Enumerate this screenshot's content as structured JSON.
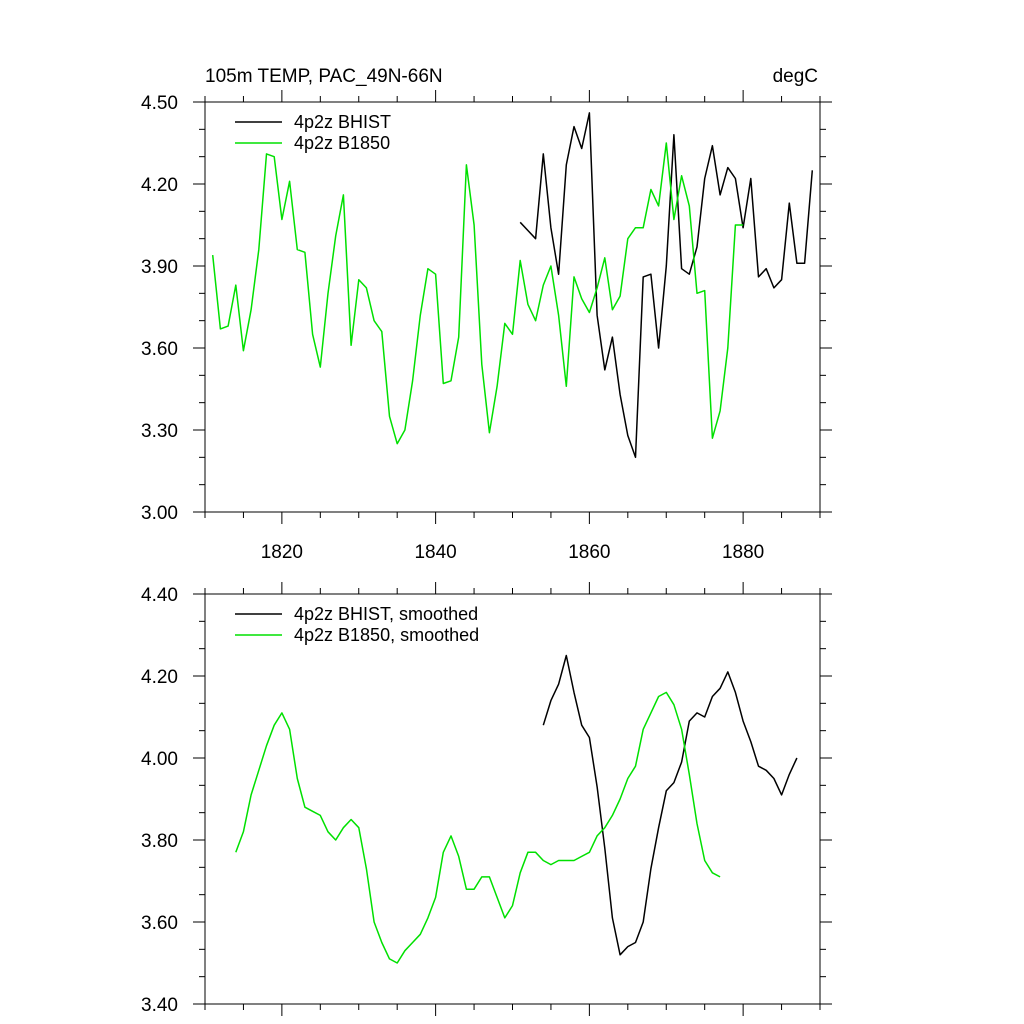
{
  "colors": {
    "bhist": "#000000",
    "b1850": "#00e000",
    "axis": "#000000"
  },
  "chart_data": [
    {
      "type": "line",
      "title": "105m TEMP, PAC_49N-66N",
      "units": "degC",
      "xlabel": "",
      "ylabel": "",
      "xlim": [
        1810,
        1890
      ],
      "ylim": [
        3.0,
        4.5
      ],
      "xticks": [
        1820,
        1840,
        1860,
        1880
      ],
      "xtick_labels": [
        "1820",
        "1840",
        "1860",
        "1880"
      ],
      "yticks": [
        3.0,
        3.3,
        3.6,
        3.9,
        4.2,
        4.5
      ],
      "ytick_labels": [
        "3.00",
        "3.30",
        "3.60",
        "3.90",
        "4.20",
        "4.50"
      ],
      "grid": false,
      "legend_position": "top-left",
      "series": [
        {
          "name": "4p2z BHIST",
          "color": "#000000",
          "x": [
            1851,
            1852,
            1853,
            1854,
            1855,
            1856,
            1857,
            1858,
            1859,
            1860,
            1861,
            1862,
            1863,
            1864,
            1865,
            1866,
            1867,
            1868,
            1869,
            1870,
            1871,
            1872,
            1873,
            1874,
            1875,
            1876,
            1877,
            1878,
            1879,
            1880,
            1881,
            1882,
            1883,
            1884,
            1885,
            1886,
            1887,
            1888,
            1889
          ],
          "values": [
            4.06,
            4.03,
            4.0,
            4.31,
            4.04,
            3.87,
            4.27,
            4.41,
            4.33,
            4.46,
            3.72,
            3.52,
            3.64,
            3.43,
            3.28,
            3.2,
            3.86,
            3.87,
            3.6,
            3.9,
            4.38,
            3.89,
            3.87,
            3.97,
            4.22,
            4.34,
            4.16,
            4.26,
            4.22,
            4.04,
            4.22,
            3.86,
            3.89,
            3.82,
            3.85,
            4.13,
            3.91,
            3.91,
            4.25
          ]
        },
        {
          "name": "4p2z B1850",
          "color": "#00e000",
          "x": [
            1811,
            1812,
            1813,
            1814,
            1815,
            1816,
            1817,
            1818,
            1819,
            1820,
            1821,
            1822,
            1823,
            1824,
            1825,
            1826,
            1827,
            1828,
            1829,
            1830,
            1831,
            1832,
            1833,
            1834,
            1835,
            1836,
            1837,
            1838,
            1839,
            1840,
            1841,
            1842,
            1843,
            1844,
            1845,
            1846,
            1847,
            1848,
            1849,
            1850,
            1851,
            1852,
            1853,
            1854,
            1855,
            1856,
            1857,
            1858,
            1859,
            1860,
            1861,
            1862,
            1863,
            1864,
            1865,
            1866,
            1867,
            1868,
            1869,
            1870,
            1871,
            1872,
            1873,
            1874,
            1875,
            1876,
            1877,
            1878,
            1879,
            1880
          ],
          "values": [
            3.94,
            3.67,
            3.68,
            3.83,
            3.59,
            3.74,
            3.96,
            4.31,
            4.3,
            4.07,
            4.21,
            3.96,
            3.95,
            3.65,
            3.53,
            3.8,
            4.01,
            4.16,
            3.61,
            3.85,
            3.82,
            3.7,
            3.66,
            3.35,
            3.25,
            3.3,
            3.48,
            3.72,
            3.89,
            3.87,
            3.47,
            3.48,
            3.64,
            4.27,
            4.05,
            3.54,
            3.29,
            3.46,
            3.69,
            3.65,
            3.92,
            3.76,
            3.7,
            3.83,
            3.9,
            3.72,
            3.46,
            3.86,
            3.78,
            3.73,
            3.82,
            3.93,
            3.74,
            3.79,
            4.0,
            4.04,
            4.04,
            4.18,
            4.12,
            4.35,
            4.07,
            4.23,
            4.12,
            3.8,
            3.81,
            3.27,
            3.37,
            3.6,
            4.05,
            4.05
          ]
        }
      ]
    },
    {
      "type": "line",
      "title": "",
      "xlabel": "",
      "ylabel": "",
      "xlim": [
        1810,
        1890
      ],
      "ylim": [
        3.4,
        4.4
      ],
      "xticks": [
        1820,
        1840,
        1860,
        1880
      ],
      "yticks": [
        3.4,
        3.6,
        3.8,
        4.0,
        4.2,
        4.4
      ],
      "ytick_labels": [
        "3.40",
        "3.60",
        "3.80",
        "4.00",
        "4.20",
        "4.40"
      ],
      "grid": false,
      "legend_position": "top-left",
      "series": [
        {
          "name": "4p2z BHIST, smoothed",
          "color": "#000000",
          "x": [
            1854,
            1855,
            1856,
            1857,
            1858,
            1859,
            1860,
            1861,
            1862,
            1863,
            1864,
            1865,
            1866,
            1867,
            1868,
            1869,
            1870,
            1871,
            1872,
            1873,
            1874,
            1875,
            1876,
            1877,
            1878,
            1879,
            1880,
            1881,
            1882,
            1883,
            1884,
            1885,
            1886,
            1887
          ],
          "values": [
            4.08,
            4.14,
            4.18,
            4.25,
            4.16,
            4.08,
            4.05,
            3.93,
            3.78,
            3.61,
            3.52,
            3.54,
            3.55,
            3.6,
            3.73,
            3.83,
            3.92,
            3.94,
            3.99,
            4.09,
            4.11,
            4.1,
            4.15,
            4.17,
            4.21,
            4.16,
            4.09,
            4.04,
            3.98,
            3.97,
            3.95,
            3.91,
            3.96,
            4.0
          ]
        },
        {
          "name": "4p2z B1850, smoothed",
          "color": "#00e000",
          "x": [
            1814,
            1815,
            1816,
            1817,
            1818,
            1819,
            1820,
            1821,
            1822,
            1823,
            1824,
            1825,
            1826,
            1827,
            1828,
            1829,
            1830,
            1831,
            1832,
            1833,
            1834,
            1835,
            1836,
            1837,
            1838,
            1839,
            1840,
            1841,
            1842,
            1843,
            1844,
            1845,
            1846,
            1847,
            1848,
            1849,
            1850,
            1851,
            1852,
            1853,
            1854,
            1855,
            1856,
            1857,
            1858,
            1859,
            1860,
            1861,
            1862,
            1863,
            1864,
            1865,
            1866,
            1867,
            1868,
            1869,
            1870,
            1871,
            1872,
            1873,
            1874,
            1875,
            1876,
            1877
          ],
          "values": [
            3.77,
            3.82,
            3.91,
            3.97,
            4.03,
            4.08,
            4.11,
            4.07,
            3.95,
            3.88,
            3.87,
            3.86,
            3.82,
            3.8,
            3.83,
            3.85,
            3.83,
            3.73,
            3.6,
            3.55,
            3.51,
            3.5,
            3.53,
            3.55,
            3.57,
            3.61,
            3.66,
            3.77,
            3.81,
            3.76,
            3.68,
            3.68,
            3.71,
            3.71,
            3.66,
            3.61,
            3.64,
            3.72,
            3.77,
            3.77,
            3.75,
            3.74,
            3.75,
            3.75,
            3.75,
            3.76,
            3.77,
            3.81,
            3.83,
            3.86,
            3.9,
            3.95,
            3.98,
            4.07,
            4.11,
            4.15,
            4.16,
            4.13,
            4.07,
            3.96,
            3.84,
            3.75,
            3.72,
            3.71
          ]
        }
      ]
    }
  ]
}
